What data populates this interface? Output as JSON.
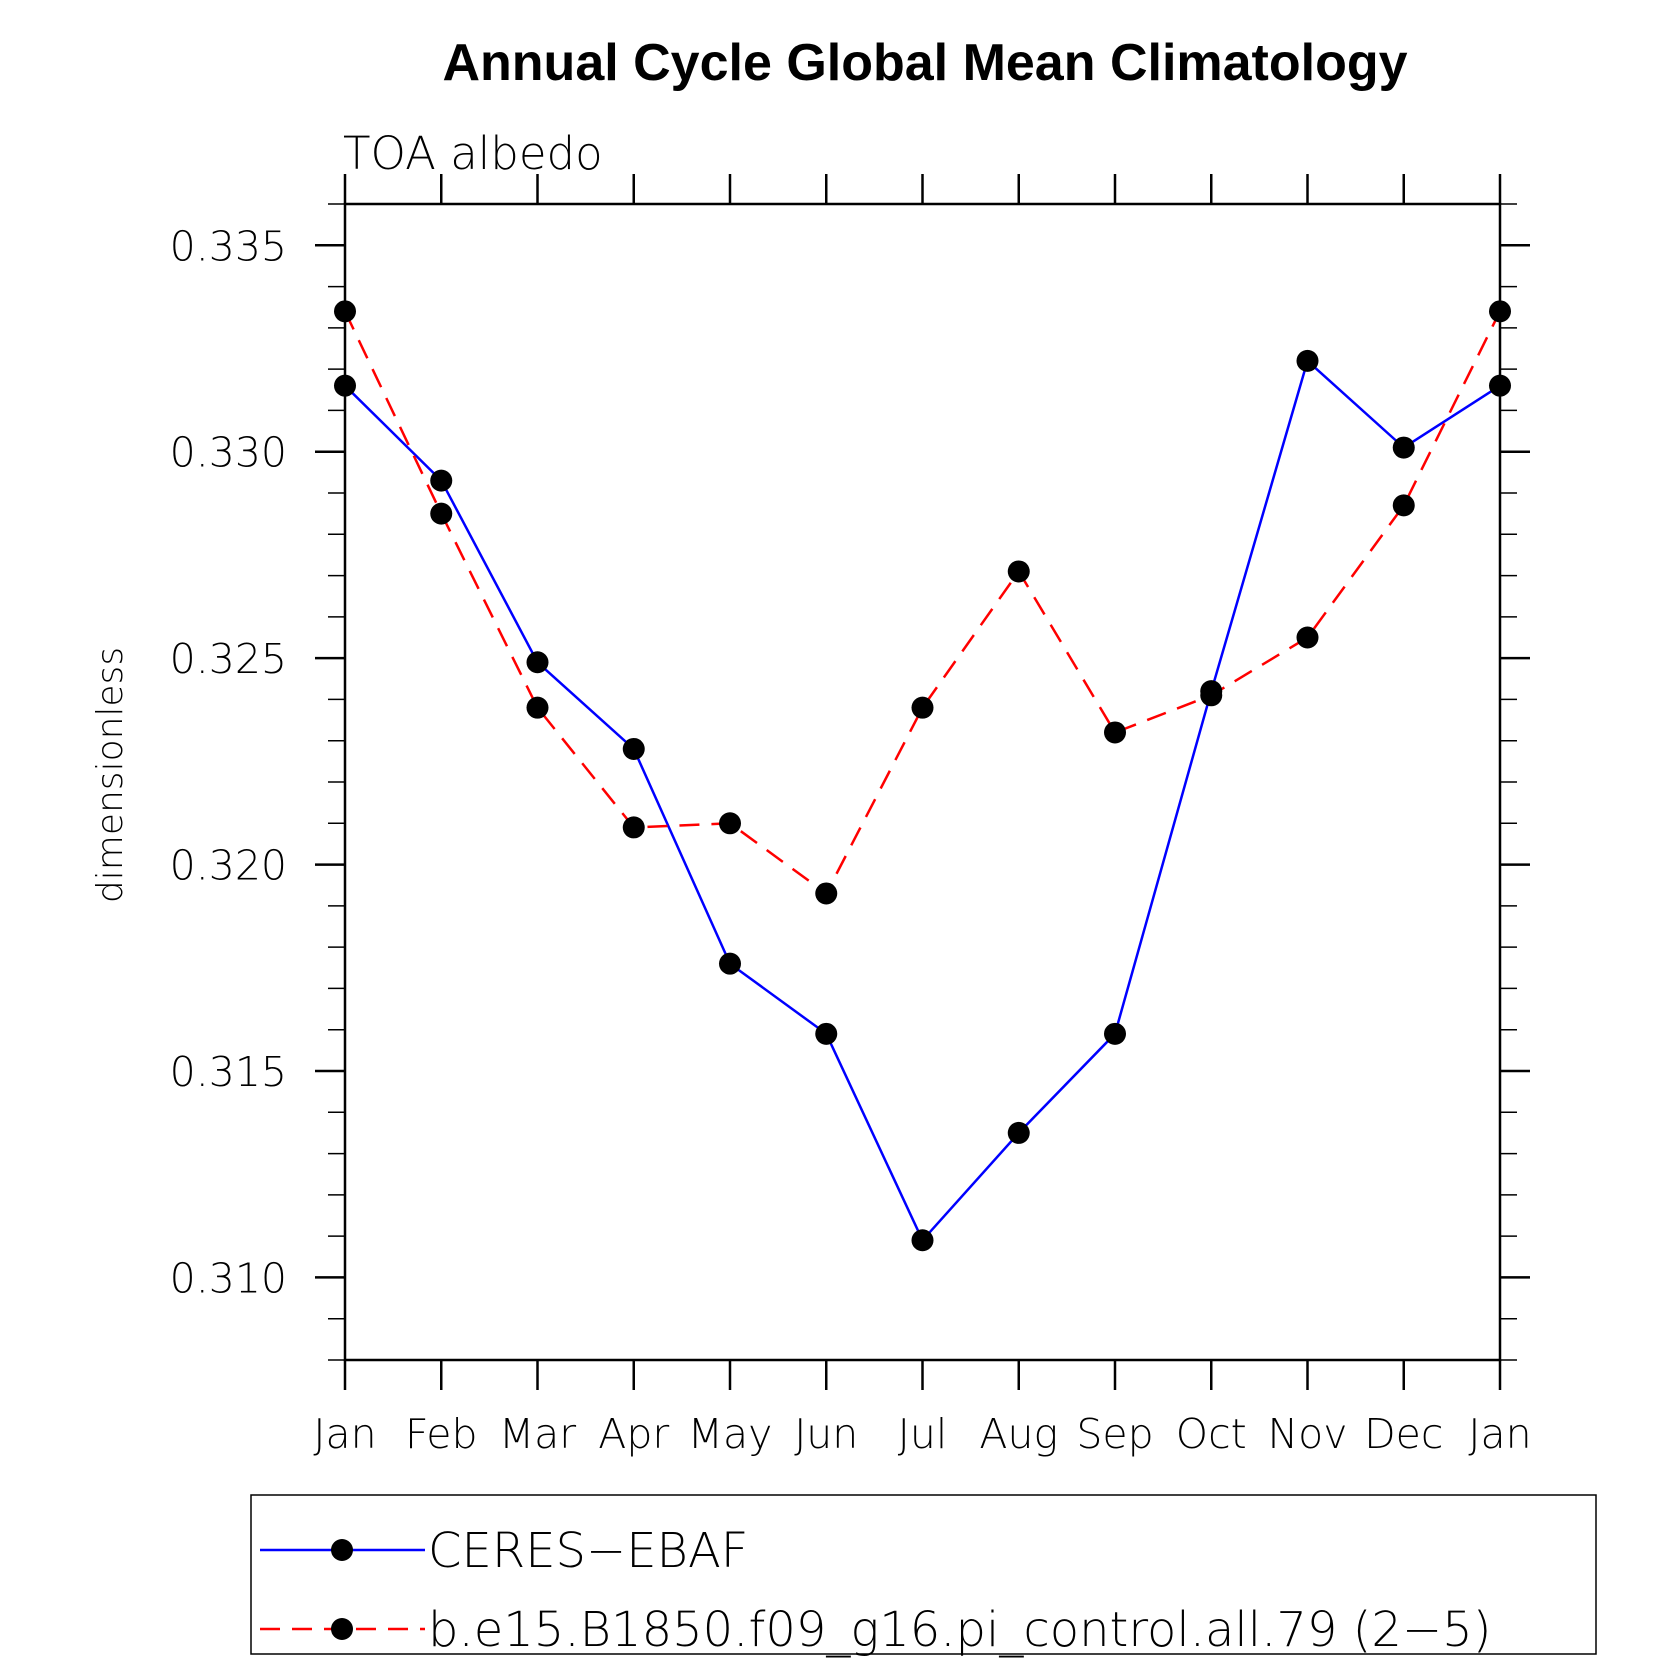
{
  "chart_data": {
    "type": "line",
    "title": "Annual Cycle Global Mean Climatology",
    "subtitle": "TOA  albedo",
    "ylabel": "dimensionless",
    "xlabel": "",
    "categories": [
      "Jan",
      "Feb",
      "Mar",
      "Apr",
      "May",
      "Jun",
      "Jul",
      "Aug",
      "Sep",
      "Oct",
      "Nov",
      "Dec",
      "Jan"
    ],
    "ylim": [
      0.308,
      0.336
    ],
    "yticks": [
      0.31,
      0.315,
      0.32,
      0.325,
      0.33,
      0.335
    ],
    "ytick_labels": [
      "0.310",
      "0.315",
      "0.320",
      "0.325",
      "0.330",
      "0.335"
    ],
    "y_minor_step": 0.001,
    "grid": false,
    "legend_position": "bottom",
    "series": [
      {
        "name": "CERES−EBAF",
        "color": "#0000ff",
        "line_style": "solid",
        "marker": "filled-circle",
        "marker_color": "#000000",
        "values": [
          0.3316,
          0.3293,
          0.3249,
          0.3228,
          0.3176,
          0.3159,
          0.3109,
          0.3135,
          0.3159,
          0.3242,
          0.3322,
          0.3301,
          0.3316
        ]
      },
      {
        "name": "b.e15.B1850.f09_g16.pi_control.all.79 (2−5)",
        "color": "#ff0000",
        "line_style": "dashed",
        "marker": "filled-circle",
        "marker_color": "#000000",
        "values": [
          0.3334,
          0.3285,
          0.3238,
          0.3209,
          0.321,
          0.3193,
          0.3238,
          0.3271,
          0.3232,
          0.3241,
          0.3255,
          0.3287,
          0.3334
        ]
      }
    ]
  }
}
